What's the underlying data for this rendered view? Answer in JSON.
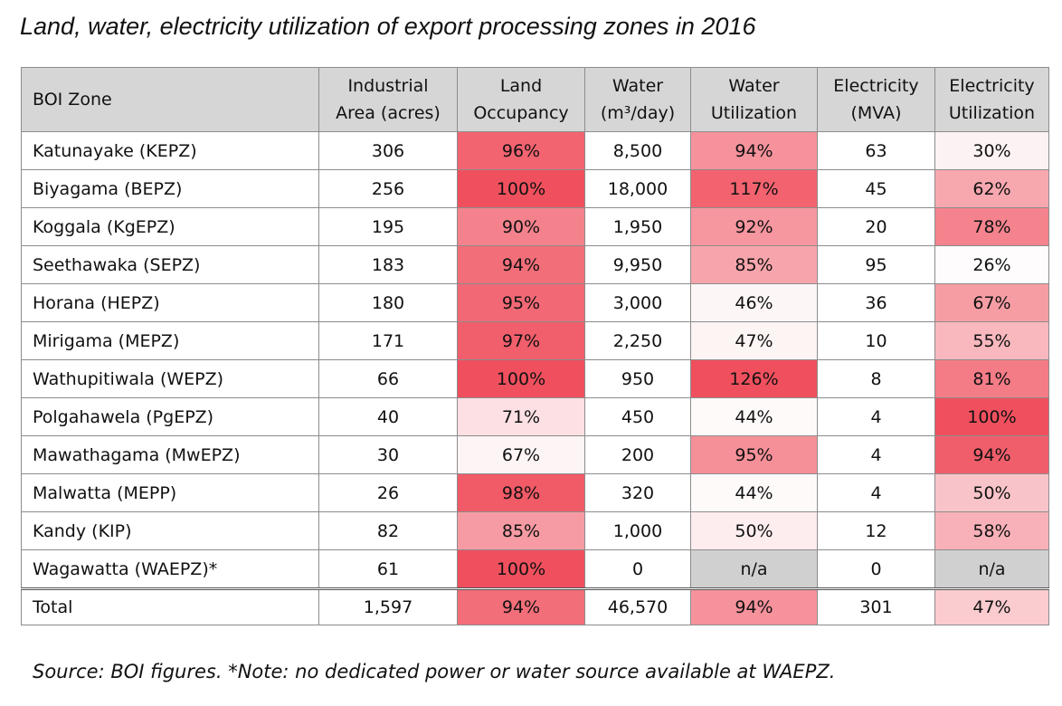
{
  "title": "Land, water, electricity utilization of export processing zones in 2016",
  "footnote": "Source: BOI figures. *Note: no dedicated power or water source available at WAEPZ.",
  "colors": {
    "header_bg": "#d6d6d6",
    "na_bg": "#d0d0d0",
    "heat_low": "#fefefe",
    "heat_high": "#f0505e"
  },
  "table": {
    "headers": [
      [
        "BOI Zone"
      ],
      [
        "Industrial",
        "Area (acres)"
      ],
      [
        "Land",
        "Occupancy"
      ],
      [
        "Water",
        "(m³/day)"
      ],
      [
        "Water",
        "Utilization"
      ],
      [
        "Electricity",
        "(MVA)"
      ],
      [
        "Electricity",
        "Utilization"
      ]
    ],
    "heat_scales": {
      "2": [
        65,
        100
      ],
      "4": [
        42,
        126
      ],
      "6": [
        25,
        100
      ]
    },
    "rows": [
      [
        "Katunayake (KEPZ)",
        "306",
        "96%",
        "8,500",
        "94%",
        "63",
        "30%"
      ],
      [
        "Biyagama (BEPZ)",
        "256",
        "100%",
        "18,000",
        "117%",
        "45",
        "62%"
      ],
      [
        "Koggala (KgEPZ)",
        "195",
        "90%",
        "1,950",
        "92%",
        "20",
        "78%"
      ],
      [
        "Seethawaka (SEPZ)",
        "183",
        "94%",
        "9,950",
        "85%",
        "95",
        "26%"
      ],
      [
        "Horana (HEPZ)",
        "180",
        "95%",
        "3,000",
        "46%",
        "36",
        "67%"
      ],
      [
        "Mirigama (MEPZ)",
        "171",
        "97%",
        "2,250",
        "47%",
        "10",
        "55%"
      ],
      [
        "Wathupitiwala (WEPZ)",
        "66",
        "100%",
        "950",
        "126%",
        "8",
        "81%"
      ],
      [
        "Polgahawela (PgEPZ)",
        "40",
        "71%",
        "450",
        "44%",
        "4",
        "100%"
      ],
      [
        "Mawathagama (MwEPZ)",
        "30",
        "67%",
        "200",
        "95%",
        "4",
        "94%"
      ],
      [
        "Malwatta (MEPP)",
        "26",
        "98%",
        "320",
        "44%",
        "4",
        "50%"
      ],
      [
        "Kandy (KIP)",
        "82",
        "85%",
        "1,000",
        "50%",
        "12",
        "58%"
      ],
      [
        "Wagawatta (WAEPZ)*",
        "61",
        "100%",
        "0",
        "n/a",
        "0",
        "n/a"
      ]
    ],
    "total": [
      "Total",
      "1,597",
      "94%",
      "46,570",
      "94%",
      "301",
      "47%"
    ]
  }
}
